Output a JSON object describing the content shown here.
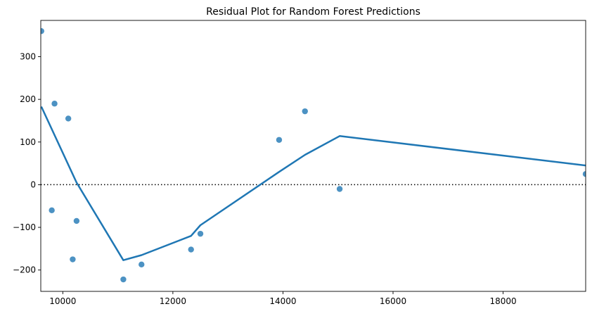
{
  "chart_data": {
    "type": "scatter",
    "title": "Residual Plot for Random Forest Predictions",
    "xlabel": "",
    "ylabel": "",
    "xlim": [
      9600,
      19500
    ],
    "ylim": [
      -250,
      385
    ],
    "x_ticks": [
      10000,
      12000,
      14000,
      16000,
      18000
    ],
    "y_ticks": [
      -200,
      -100,
      0,
      100,
      200,
      300
    ],
    "grid": false,
    "zero_line": {
      "y": 0,
      "style": "dotted",
      "color": "#000000"
    },
    "colors": {
      "points": "#1f77b4",
      "line": "#1f77b4"
    },
    "points": [
      {
        "x": 9610,
        "y": 360
      },
      {
        "x": 9800,
        "y": -60
      },
      {
        "x": 9850,
        "y": 190
      },
      {
        "x": 10100,
        "y": 155
      },
      {
        "x": 10180,
        "y": -175
      },
      {
        "x": 10250,
        "y": -85
      },
      {
        "x": 11100,
        "y": -222
      },
      {
        "x": 11430,
        "y": -187
      },
      {
        "x": 12330,
        "y": -152
      },
      {
        "x": 12500,
        "y": -115
      },
      {
        "x": 13930,
        "y": 105
      },
      {
        "x": 14400,
        "y": 172
      },
      {
        "x": 15030,
        "y": -10
      },
      {
        "x": 19500,
        "y": 25
      }
    ],
    "smooth_line": [
      {
        "x": 9610,
        "y": 183
      },
      {
        "x": 10250,
        "y": 5
      },
      {
        "x": 11100,
        "y": -177
      },
      {
        "x": 11430,
        "y": -165
      },
      {
        "x": 12330,
        "y": -120
      },
      {
        "x": 12500,
        "y": -95
      },
      {
        "x": 13930,
        "y": 30
      },
      {
        "x": 14400,
        "y": 70
      },
      {
        "x": 15030,
        "y": 114
      },
      {
        "x": 19500,
        "y": 45
      }
    ]
  }
}
